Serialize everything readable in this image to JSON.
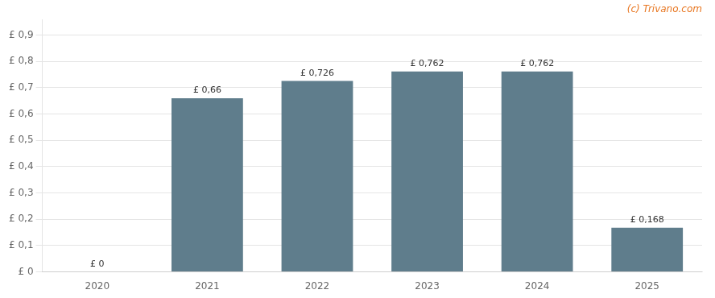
{
  "chart_data": {
    "type": "bar",
    "categories": [
      "2020",
      "2021",
      "2022",
      "2023",
      "2024",
      "2025"
    ],
    "values": [
      0,
      0.66,
      0.726,
      0.762,
      0.762,
      0.168
    ],
    "value_labels": [
      "£ 0",
      "£ 0,66",
      "£ 0,726",
      "£ 0,762",
      "£ 0,762",
      "£ 0,168"
    ],
    "data_labels": true,
    "color": "#5f7d8c",
    "ylim": [
      0,
      0.96
    ],
    "yticks": [
      {
        "value": 0,
        "label": "£ 0"
      },
      {
        "value": 0.1,
        "label": "£ 0,1"
      },
      {
        "value": 0.2,
        "label": "£ 0,2"
      },
      {
        "value": 0.3,
        "label": "£ 0,3"
      },
      {
        "value": 0.4,
        "label": "£ 0,4"
      },
      {
        "value": 0.5,
        "label": "£ 0,5"
      },
      {
        "value": 0.6,
        "label": "£ 0,6"
      },
      {
        "value": 0.7,
        "label": "£ 0,7"
      },
      {
        "value": 0.8,
        "label": "£ 0,8"
      },
      {
        "value": 0.9,
        "label": "£ 0,9"
      }
    ],
    "grid": true,
    "annotations": [
      {
        "text": "(c) Trivano.com",
        "color": "#e87722"
      }
    ]
  }
}
